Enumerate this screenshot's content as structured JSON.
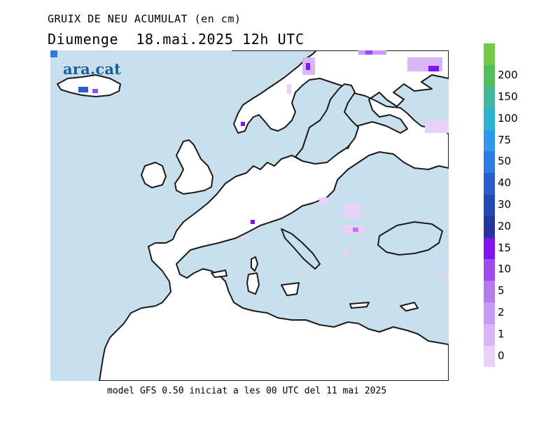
{
  "header": {
    "title": "GRUIX DE NEU ACUMULAT (en cm)",
    "subtitle": "Diumenge  18.mai.2025 12h UTC"
  },
  "logo": {
    "text": "ara.cat",
    "color": "#1e5c99"
  },
  "footer": {
    "text": "model GFS 0.50 iniciat a les 00 UTC del 11 mai 2025"
  },
  "legend": {
    "labels": [
      "0",
      "1",
      "2",
      "5",
      "10",
      "15",
      "20",
      "30",
      "40",
      "50",
      "75",
      "100",
      "150",
      "200"
    ],
    "colors": [
      "#e8d2fa",
      "#d9b7f6",
      "#c89bf2",
      "#b57bee",
      "#9a4ef0",
      "#7f16f2",
      "#27349c",
      "#2747b4",
      "#2b5cd0",
      "#2f7be6",
      "#2f98ee",
      "#2bb3d0",
      "#44b89b",
      "#52be5c",
      "#74c84a"
    ]
  },
  "map": {
    "sea_color": "#c8e0ee",
    "land_color": "#ffffff",
    "coast_color": "#1a1a1a"
  }
}
